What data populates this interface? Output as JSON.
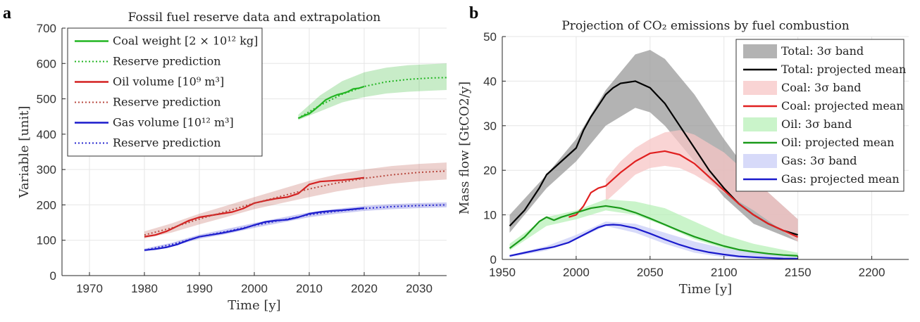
{
  "chart_data": [
    {
      "panel": "a",
      "type": "line",
      "title": "Fossil fuel reserve data and extrapolation",
      "xlabel": "Time [y]",
      "ylabel": "Variable [unit]",
      "xlim": [
        1965,
        2035
      ],
      "ylim": [
        0,
        700
      ],
      "xticks": [
        1970,
        1980,
        1990,
        2000,
        2010,
        2020,
        2030
      ],
      "yticks": [
        0,
        100,
        200,
        300,
        400,
        500,
        600,
        700
      ],
      "grid": true,
      "legend_position": "top-left",
      "series": [
        {
          "name": "Coal weight [2 × 10¹² kg]",
          "style": "solid",
          "color": "#22b522",
          "x": [
            2008,
            2009,
            2010,
            2011,
            2012,
            2013,
            2014,
            2015,
            2016,
            2017,
            2018,
            2019,
            2020
          ],
          "y": [
            445,
            452,
            458,
            470,
            483,
            497,
            505,
            511,
            515,
            520,
            528,
            530,
            535
          ]
        },
        {
          "name": "Reserve prediction",
          "style": "dotted",
          "color": "#22b522",
          "x": [
            2008,
            2012,
            2016,
            2020,
            2024,
            2028,
            2032,
            2035
          ],
          "y": [
            445,
            482,
            513,
            535,
            548,
            555,
            559,
            560
          ],
          "band_upper": [
            455,
            510,
            550,
            575,
            588,
            595,
            598,
            600
          ],
          "band_lower": [
            440,
            465,
            490,
            505,
            515,
            520,
            523,
            525
          ]
        },
        {
          "name": "Oil volume [10⁹ m³]",
          "style": "solid",
          "color": "#d42020",
          "x": [
            1980,
            1982,
            1984,
            1986,
            1988,
            1990,
            1992,
            1994,
            1996,
            1998,
            2000,
            2002,
            2004,
            2006,
            2008,
            2010,
            2012,
            2014,
            2016,
            2018,
            2020
          ],
          "y": [
            110,
            115,
            125,
            140,
            155,
            165,
            170,
            175,
            180,
            190,
            205,
            212,
            218,
            222,
            232,
            258,
            266,
            268,
            270,
            273,
            277
          ]
        },
        {
          "name": "Reserve prediction",
          "style": "dotted",
          "color": "#b84a40",
          "x": [
            1980,
            1985,
            1990,
            1995,
            2000,
            2005,
            2010,
            2015,
            2020,
            2025,
            2030,
            2035
          ],
          "y": [
            115,
            135,
            160,
            182,
            205,
            225,
            245,
            262,
            275,
            285,
            292,
            296
          ],
          "band_upper": [
            125,
            148,
            175,
            198,
            222,
            245,
            268,
            286,
            300,
            310,
            316,
            320
          ],
          "band_lower": [
            105,
            122,
            145,
            166,
            188,
            205,
            222,
            238,
            250,
            260,
            267,
            272
          ]
        },
        {
          "name": "Gas volume [10¹² m³]",
          "style": "solid",
          "color": "#1a1acc",
          "x": [
            1980,
            1982,
            1984,
            1986,
            1988,
            1990,
            1992,
            1994,
            1996,
            1998,
            2000,
            2002,
            2004,
            2006,
            2008,
            2010,
            2012,
            2014,
            2016,
            2018,
            2020
          ],
          "y": [
            72,
            75,
            80,
            88,
            100,
            110,
            115,
            120,
            126,
            133,
            143,
            152,
            156,
            158,
            165,
            175,
            180,
            183,
            185,
            188,
            191
          ]
        },
        {
          "name": "Reserve prediction",
          "style": "dotted",
          "color": "#2a2ad0",
          "x": [
            1980,
            1985,
            1990,
            1995,
            2000,
            2005,
            2010,
            2015,
            2020,
            2025,
            2030,
            2035
          ],
          "y": [
            72,
            88,
            110,
            125,
            142,
            157,
            172,
            182,
            190,
            195,
            198,
            200
          ],
          "band_upper": [
            76,
            93,
            116,
            132,
            149,
            164,
            179,
            189,
            197,
            202,
            205,
            207
          ],
          "band_lower": [
            68,
            83,
            104,
            118,
            135,
            150,
            165,
            175,
            183,
            188,
            191,
            193
          ]
        }
      ]
    },
    {
      "panel": "b",
      "type": "line",
      "title": "Projection of CO₂ emissions by fuel combustion",
      "xlabel": "Time [y]",
      "ylabel": "Mass flow [GtCO2/y]",
      "xlim": [
        1950,
        2225
      ],
      "ylim": [
        0,
        50
      ],
      "xticks": [
        1950,
        2000,
        2050,
        2100,
        2150,
        2200
      ],
      "yticks": [
        0,
        10,
        20,
        30,
        40,
        50
      ],
      "grid": true,
      "legend_position": "top-right",
      "series": [
        {
          "name": "Total: 3σ band",
          "kind": "band",
          "color": "#9a9a9a",
          "x": [
            1955,
            1980,
            2000,
            2020,
            2040,
            2050,
            2060,
            2080,
            2100,
            2120,
            2150
          ],
          "upper": [
            10,
            19,
            27,
            38,
            46,
            47,
            45,
            37,
            27,
            18,
            9
          ],
          "lower": [
            6,
            16,
            22,
            30,
            34,
            33,
            30,
            22,
            14,
            8,
            4
          ]
        },
        {
          "name": "Total: projected mean",
          "kind": "line",
          "color": "#000000",
          "x": [
            1955,
            1965,
            1975,
            1980,
            1990,
            2000,
            2005,
            2010,
            2015,
            2018,
            2020,
            2025,
            2030,
            2040,
            2050,
            2060,
            2070,
            2080,
            2090,
            2100,
            2110,
            2120,
            2130,
            2140,
            2150
          ],
          "y": [
            7.5,
            11,
            16,
            19,
            22,
            25,
            29,
            32,
            34.5,
            36,
            37,
            38.5,
            39.5,
            40,
            38.5,
            35,
            30,
            25,
            20,
            16,
            12.5,
            10,
            8,
            6.5,
            5.5
          ]
        },
        {
          "name": "Coal: 3σ band",
          "kind": "band",
          "color": "#f7c6c6",
          "x": [
            2020,
            2030,
            2040,
            2050,
            2060,
            2070,
            2080,
            2100,
            2120,
            2150
          ],
          "upper": [
            18,
            22,
            25,
            27,
            28.5,
            29,
            28,
            24,
            18,
            9
          ],
          "lower": [
            13,
            16,
            19,
            20.5,
            21,
            20.5,
            19,
            15,
            11,
            4
          ]
        },
        {
          "name": "Coal: projected mean",
          "kind": "line",
          "color": "#e02020",
          "x": [
            1995,
            2000,
            2005,
            2010,
            2015,
            2020,
            2030,
            2040,
            2050,
            2060,
            2070,
            2080,
            2090,
            2100,
            2110,
            2120,
            2130,
            2140,
            2150
          ],
          "y": [
            9.5,
            10,
            12,
            15,
            16,
            16.5,
            19.5,
            22,
            23.8,
            24.3,
            23.5,
            21.5,
            18.5,
            15.5,
            12.5,
            10,
            8,
            6.5,
            5
          ]
        },
        {
          "name": "Oil: 3σ band",
          "kind": "band",
          "color": "#b8f0b8",
          "x": [
            1955,
            1980,
            2000,
            2020,
            2040,
            2060,
            2080,
            2100,
            2120,
            2150
          ],
          "upper": [
            3.5,
            9.5,
            11,
            13.5,
            13,
            11.5,
            8.5,
            5.5,
            3.5,
            1.5
          ],
          "lower": [
            2,
            7.5,
            9,
            11,
            10,
            7.5,
            4.5,
            2.5,
            1.2,
            0.3
          ]
        },
        {
          "name": "Oil: projected mean",
          "kind": "line",
          "color": "#1a9a1a",
          "x": [
            1955,
            1965,
            1975,
            1980,
            1985,
            1990,
            2000,
            2010,
            2020,
            2030,
            2040,
            2050,
            2060,
            2070,
            2080,
            2090,
            2100,
            2110,
            2120,
            2130,
            2140,
            2150
          ],
          "y": [
            2.5,
            5,
            8.5,
            9.5,
            8.8,
            9.5,
            10.5,
            11.5,
            12,
            11.5,
            10.5,
            9.2,
            7.8,
            6.4,
            5.1,
            4,
            3,
            2.2,
            1.7,
            1.3,
            1,
            0.8
          ]
        },
        {
          "name": "Gas: 3σ band",
          "kind": "band",
          "color": "#c9cdf7",
          "x": [
            1955,
            1980,
            2000,
            2020,
            2040,
            2060,
            2080,
            2100,
            2120,
            2150
          ],
          "upper": [
            1,
            3,
            5.5,
            8.5,
            8,
            6,
            4,
            2.5,
            1.5,
            0.5
          ],
          "lower": [
            0.5,
            2,
            4.5,
            7.5,
            6,
            3.5,
            1.5,
            0.5,
            0.2,
            0
          ]
        },
        {
          "name": "Gas: projected mean",
          "kind": "line",
          "color": "#1a1acc",
          "x": [
            1955,
            1965,
            1975,
            1985,
            1995,
            2005,
            2015,
            2020,
            2025,
            2030,
            2040,
            2050,
            2060,
            2070,
            2080,
            2090,
            2100,
            2110,
            2120,
            2130,
            2140,
            2150
          ],
          "y": [
            0.8,
            1.5,
            2.2,
            2.8,
            3.8,
            5.5,
            7.2,
            7.7,
            7.8,
            7.7,
            7,
            5.8,
            4.5,
            3.3,
            2.3,
            1.6,
            1.1,
            0.7,
            0.5,
            0.35,
            0.2,
            0.15
          ]
        }
      ]
    }
  ],
  "labels": {
    "panel_a": "a",
    "panel_b": "b"
  }
}
